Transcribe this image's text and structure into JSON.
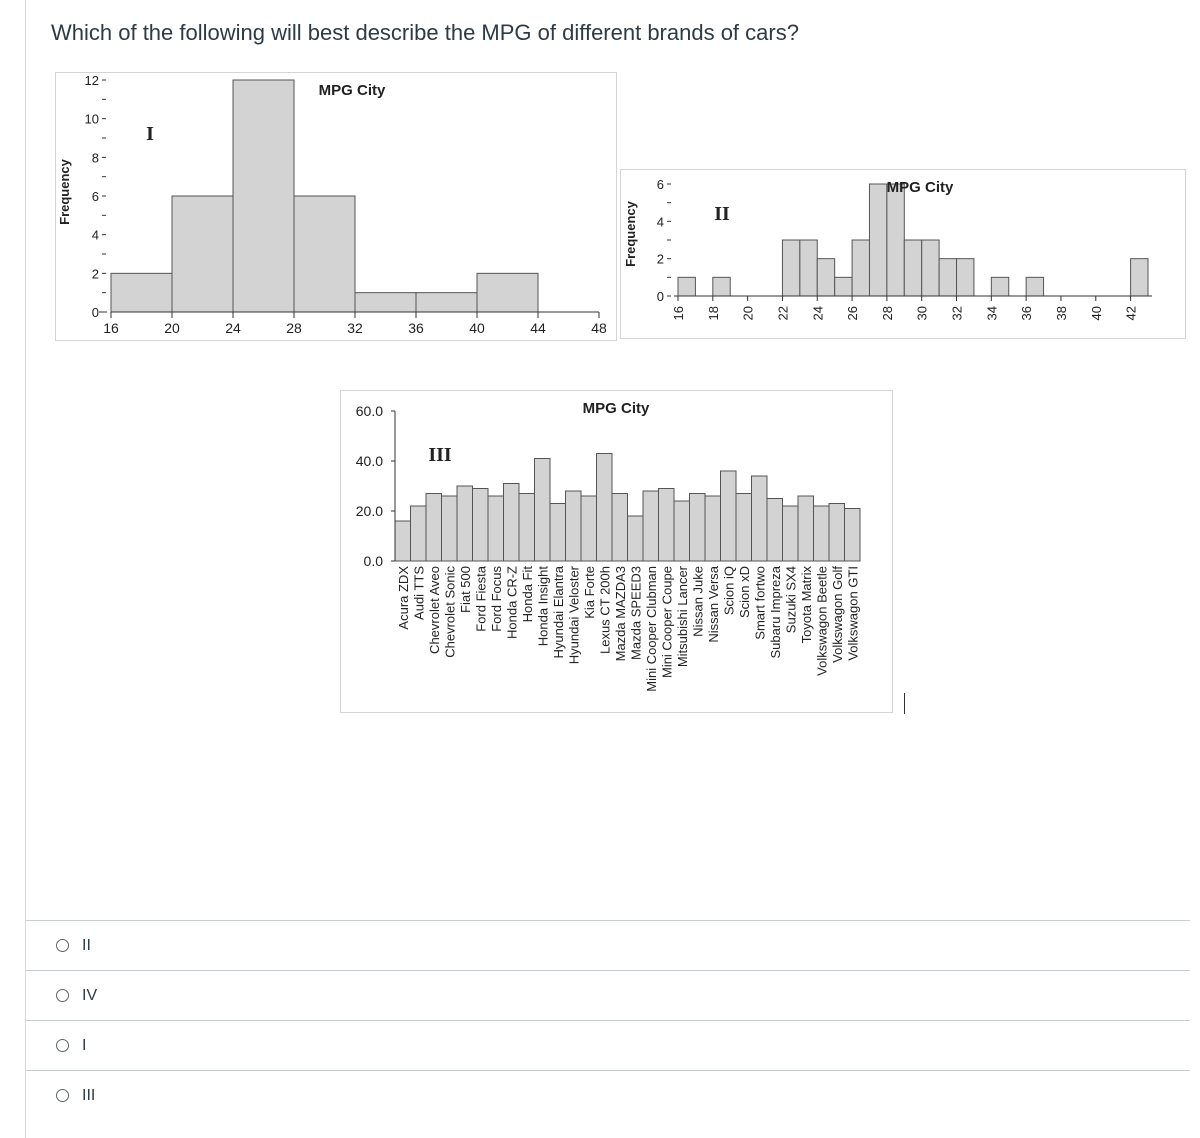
{
  "question": {
    "text": "Which of the following will best describe the MPG of different brands of cars?"
  },
  "answers": [
    {
      "label": "II"
    },
    {
      "label": "IV"
    },
    {
      "label": "I"
    },
    {
      "label": "III"
    }
  ],
  "chart_data": [
    {
      "type": "bar",
      "id": "I",
      "title": "MPG City",
      "figure_label": "I",
      "ylabel": "Frequency",
      "xlabel": "",
      "bins": [
        [
          16,
          20
        ],
        [
          20,
          24
        ],
        [
          24,
          28
        ],
        [
          28,
          32
        ],
        [
          32,
          36
        ],
        [
          36,
          40
        ],
        [
          40,
          44
        ]
      ],
      "values": [
        2,
        6,
        12,
        6,
        1,
        1,
        2
      ],
      "x_ticks": [
        "16",
        "20",
        "24",
        "28",
        "32",
        "36",
        "40",
        "44",
        "48"
      ],
      "y_ticks": [
        "0",
        "2",
        "4",
        "6",
        "8",
        "10",
        "12"
      ],
      "ylim": [
        0,
        12
      ],
      "xlim": [
        16,
        48
      ],
      "grid": false
    },
    {
      "type": "bar",
      "id": "II",
      "title": "MPG City",
      "figure_label": "II",
      "ylabel": "Frequency",
      "xlabel": "",
      "bins": [
        [
          16,
          17
        ],
        [
          17,
          18
        ],
        [
          18,
          19
        ],
        [
          19,
          20
        ],
        [
          20,
          21
        ],
        [
          21,
          22
        ],
        [
          22,
          23
        ],
        [
          23,
          24
        ],
        [
          24,
          25
        ],
        [
          25,
          26
        ],
        [
          26,
          27
        ],
        [
          27,
          28
        ],
        [
          28,
          29
        ],
        [
          29,
          30
        ],
        [
          30,
          31
        ],
        [
          31,
          32
        ],
        [
          32,
          33
        ],
        [
          33,
          34
        ],
        [
          34,
          35
        ],
        [
          35,
          36
        ],
        [
          36,
          37
        ],
        [
          37,
          38
        ],
        [
          38,
          39
        ],
        [
          39,
          40
        ],
        [
          40,
          41
        ],
        [
          41,
          42
        ],
        [
          42,
          43
        ]
      ],
      "values": [
        1,
        0,
        1,
        0,
        0,
        0,
        3,
        3,
        2,
        1,
        3,
        6,
        6,
        3,
        3,
        2,
        2,
        0,
        1,
        0,
        1,
        0,
        0,
        0,
        0,
        0,
        2
      ],
      "x_ticks": [
        "16",
        "18",
        "20",
        "22",
        "24",
        "26",
        "28",
        "30",
        "32",
        "34",
        "36",
        "38",
        "40",
        "42"
      ],
      "y_ticks": [
        "0",
        "2",
        "4",
        "6"
      ],
      "ylim": [
        0,
        6
      ],
      "xlim": [
        16,
        43
      ],
      "grid": false
    },
    {
      "type": "bar",
      "id": "III",
      "title": "MPG City",
      "figure_label": "III",
      "ylabel": "",
      "xlabel": "",
      "categories": [
        "Acura ZDX",
        "Audi TTS",
        "Chevrolet Aveo",
        "Chevrolet Sonic",
        "Fiat 500",
        "Ford Fiesta",
        "Ford Focus",
        "Honda CR-Z",
        "Honda Fit",
        "Honda Insight",
        "Hyundai Elantra",
        "Hyundai Veloster",
        "Kia Forte",
        "Lexus CT 200h",
        "Mazda MAZDA3",
        "Mazda SPEED3",
        "Mini Cooper Clubman",
        "Mini Cooper Coupe",
        "Mitsubishi Lancer",
        "Nissan Juke",
        "Nissan Versa",
        "Scion iQ",
        "Scion xD",
        "Smart fortwo",
        "Subaru Impreza",
        "Suzuki SX4",
        "Toyota Matrix",
        "Volkswagon Beetle",
        "Volkswagon Golf",
        "Volkswagon GTI"
      ],
      "values": [
        16,
        22,
        27,
        26,
        30,
        29,
        26,
        31,
        27,
        41,
        23,
        28,
        26,
        43,
        27,
        18,
        28,
        29,
        24,
        27,
        26,
        36,
        27,
        34,
        25,
        22,
        26,
        22,
        23,
        21
      ],
      "y_ticks": [
        "0.0",
        "20.0",
        "40.0",
        "60.0"
      ],
      "ylim": [
        0,
        60
      ],
      "grid": false
    }
  ]
}
